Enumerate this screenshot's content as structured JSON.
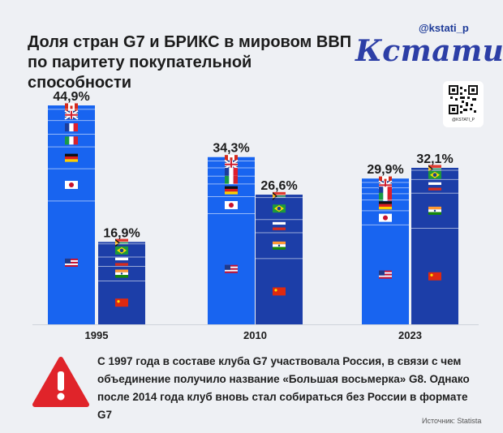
{
  "title": "Доля стран G7 и БРИКС в мировом ВВП по паритету покупательной способности",
  "brand": {
    "handle": "@kstati_p",
    "logo": "Кстати,",
    "qr_caption": "@KSTATI_P"
  },
  "colors": {
    "g7": "#1864f0",
    "brics": "#1c3ea8",
    "title": "#1b1b1b",
    "warning": "#e0242a",
    "brand": "#2c3ea6"
  },
  "chart_data": {
    "type": "bar",
    "title": "Доля стран G7 и БРИКС в мировом ВВП по паритету покупательной способности",
    "categories": [
      "1995",
      "2010",
      "2023"
    ],
    "unit": "%",
    "ylim": [
      0,
      45
    ],
    "series": [
      {
        "name": "G7",
        "values": [
          44.9,
          34.3,
          29.9
        ],
        "labels": [
          "44,9%",
          "34,3%",
          "29,9%"
        ],
        "stack_order": [
          "Canada",
          "United Kingdom",
          "France",
          "Italy",
          "Germany",
          "Japan",
          "United States"
        ]
      },
      {
        "name": "БРИКС",
        "values": [
          16.9,
          26.6,
          32.1
        ],
        "labels": [
          "16,9%",
          "26,6%",
          "32,1%"
        ],
        "stack_order": [
          "South Africa",
          "Brazil",
          "Russia",
          "India",
          "China"
        ]
      }
    ],
    "segments": {
      "G7": [
        [
          0.8,
          2.3,
          2.8,
          2.6,
          4.5,
          6.6,
          25.3
        ],
        [
          0.8,
          1.4,
          1.7,
          1.6,
          2.6,
          3.5,
          22.7
        ],
        [
          0.8,
          1.1,
          1.2,
          1.3,
          2.2,
          2.9,
          20.4
        ]
      ],
      "БРИКС": [
        [
          0.4,
          2.7,
          1.9,
          3.0,
          8.9
        ],
        [
          0.6,
          4.5,
          2.7,
          5.3,
          13.5
        ],
        [
          0.5,
          1.9,
          2.8,
          7.2,
          19.7
        ]
      ]
    }
  },
  "note": "С 1997 года в составе клуба G7 участвовала Россия, в связи с чем объединение получило название «Большая восьмерка» G8. Однако после 2014 года клуб вновь стал собираться без России в формате G7",
  "source": "Источник: Statista"
}
